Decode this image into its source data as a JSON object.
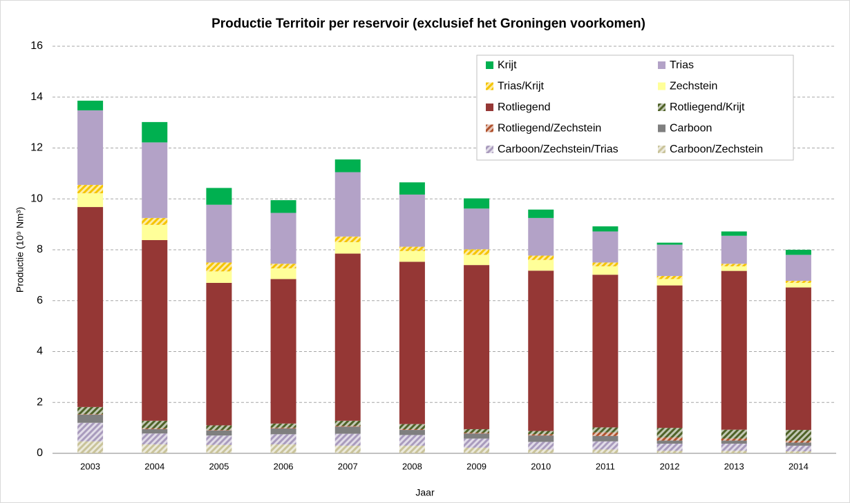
{
  "chart_data": {
    "type": "bar",
    "stacked": true,
    "title": "Productie Territoir per reservoir (exclusief het Groningen voorkomen)",
    "x_label": "Jaar",
    "y_label": "Productie (10⁹ Nm³)",
    "categories": [
      "2003",
      "2004",
      "2005",
      "2006",
      "2007",
      "2008",
      "2009",
      "2010",
      "2011",
      "2012",
      "2013",
      "2014"
    ],
    "ylim": [
      0,
      16
    ],
    "yticks": [
      0,
      2,
      4,
      6,
      8,
      10,
      12,
      14,
      16
    ],
    "grid": true,
    "legend": "upper right",
    "series": [
      {
        "name": "Krijt",
        "color": "#00b050",
        "hatched": false,
        "values": [
          0.38,
          0.8,
          0.66,
          0.5,
          0.5,
          0.48,
          0.4,
          0.33,
          0.2,
          0.08,
          0.17,
          0.2
        ]
      },
      {
        "name": "Trias",
        "color": "#b3a2c7",
        "hatched": false,
        "values": [
          2.93,
          2.97,
          2.27,
          2.0,
          2.53,
          2.05,
          1.6,
          1.48,
          1.22,
          1.23,
          1.1,
          1.02
        ]
      },
      {
        "name": "Trias/Krijt",
        "color": "#f5c400",
        "hatched": true,
        "values": [
          0.33,
          0.27,
          0.35,
          0.18,
          0.22,
          0.17,
          0.22,
          0.17,
          0.15,
          0.12,
          0.1,
          0.08
        ]
      },
      {
        "name": "Zechstein",
        "color": "#ffff99",
        "hatched": false,
        "values": [
          0.54,
          0.6,
          0.45,
          0.42,
          0.45,
          0.42,
          0.4,
          0.42,
          0.33,
          0.25,
          0.18,
          0.18
        ]
      },
      {
        "name": "Rotliegend",
        "color": "#953735",
        "hatched": false,
        "values": [
          7.86,
          7.1,
          5.6,
          5.68,
          6.57,
          6.38,
          6.45,
          6.3,
          6.0,
          5.6,
          6.24,
          5.6
        ]
      },
      {
        "name": "Rotliegend/Krijt",
        "color": "#4f6228",
        "hatched": true,
        "values": [
          0.28,
          0.3,
          0.18,
          0.16,
          0.2,
          0.2,
          0.14,
          0.13,
          0.2,
          0.38,
          0.35,
          0.42
        ]
      },
      {
        "name": "Rotliegend/Zechstein",
        "color": "#b0522d",
        "hatched": true,
        "values": [
          0.02,
          0.03,
          0.02,
          0.03,
          0.03,
          0.03,
          0.03,
          0.05,
          0.14,
          0.12,
          0.08,
          0.08
        ]
      },
      {
        "name": "Carboon",
        "color": "#7f7f7f",
        "hatched": false,
        "values": [
          0.32,
          0.17,
          0.2,
          0.23,
          0.28,
          0.2,
          0.2,
          0.25,
          0.21,
          0.12,
          0.12,
          0.12
        ]
      },
      {
        "name": "Carboon/Zechstein/Trias",
        "color": "#a99bbd",
        "hatched": true,
        "values": [
          0.73,
          0.43,
          0.37,
          0.4,
          0.47,
          0.42,
          0.36,
          0.3,
          0.32,
          0.28,
          0.28,
          0.22
        ]
      },
      {
        "name": "Carboon/Zechstein",
        "color": "#c9c39a",
        "hatched": true,
        "values": [
          0.47,
          0.35,
          0.33,
          0.35,
          0.3,
          0.3,
          0.22,
          0.15,
          0.15,
          0.1,
          0.1,
          0.08
        ]
      }
    ]
  }
}
